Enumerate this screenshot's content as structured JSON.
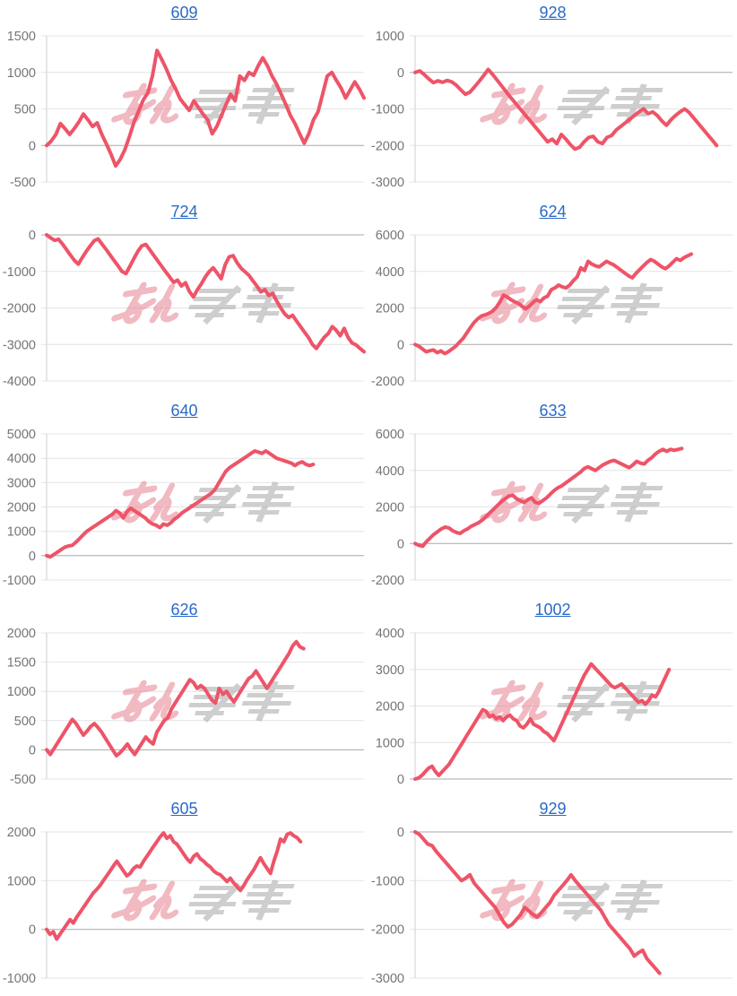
{
  "page": {
    "background": "#ffffff"
  },
  "style": {
    "line_color": "#ee5468",
    "title_color": "#2a6ac8",
    "tick_color": "#757575",
    "grid_color": "#e4e4e4",
    "zero_line_color": "#a8a8a8",
    "axis_color": "#cfcfcf",
    "watermark_pink": "#e6808f",
    "watermark_gray": "#9d9d9d"
  },
  "watermark": {
    "text": "みんレポ",
    "pink_part": "みん",
    "gray_part": "レポ"
  },
  "chart_data": [
    {
      "type": "line",
      "title": "609",
      "legend": "none",
      "grid": "horizontal",
      "ticks": [
        1500,
        1000,
        500,
        0,
        -500
      ],
      "ylim": [
        -500,
        1500
      ],
      "x_span": 1.0,
      "values": [
        0,
        60,
        150,
        300,
        230,
        150,
        230,
        320,
        430,
        350,
        260,
        310,
        150,
        20,
        -120,
        -280,
        -190,
        -60,
        120,
        320,
        470,
        620,
        720,
        950,
        1300,
        1180,
        1050,
        900,
        780,
        640,
        560,
        480,
        610,
        520,
        430,
        350,
        160,
        260,
        410,
        560,
        700,
        610,
        950,
        890,
        1000,
        960,
        1090,
        1200,
        1090,
        950,
        840,
        700,
        560,
        410,
        300,
        160,
        30,
        160,
        350,
        460,
        700,
        950,
        1000,
        890,
        790,
        650,
        760,
        870,
        770,
        650
      ]
    },
    {
      "type": "line",
      "title": "928",
      "legend": "none",
      "grid": "horizontal",
      "ticks": [
        1000,
        0,
        -1000,
        -2000,
        -3000
      ],
      "ylim": [
        -3000,
        1000
      ],
      "x_span": 0.95,
      "values": [
        0,
        40,
        -60,
        -180,
        -280,
        -230,
        -270,
        -220,
        -260,
        -350,
        -480,
        -600,
        -540,
        -400,
        -250,
        -90,
        80,
        -60,
        -220,
        -380,
        -540,
        -700,
        -850,
        -1000,
        -1150,
        -1300,
        -1450,
        -1600,
        -1750,
        -1900,
        -1830,
        -1950,
        -1700,
        -1830,
        -1980,
        -2100,
        -2050,
        -1900,
        -1780,
        -1750,
        -1900,
        -1950,
        -1780,
        -1730,
        -1580,
        -1480,
        -1380,
        -1280,
        -1180,
        -1080,
        -1000,
        -1130,
        -1080,
        -1180,
        -1330,
        -1450,
        -1300,
        -1180,
        -1080,
        -1000,
        -1100,
        -1250,
        -1400,
        -1550,
        -1700,
        -1850,
        -2000
      ]
    },
    {
      "type": "line",
      "title": "724",
      "legend": "none",
      "grid": "horizontal",
      "ticks": [
        0,
        -1000,
        -2000,
        -3000,
        -4000
      ],
      "ylim": [
        -4000,
        0
      ],
      "x_span": 1.0,
      "values": [
        0,
        -80,
        -150,
        -120,
        -250,
        -400,
        -550,
        -700,
        -800,
        -620,
        -450,
        -300,
        -160,
        -110,
        -260,
        -400,
        -550,
        -700,
        -850,
        -1000,
        -1060,
        -860,
        -650,
        -450,
        -300,
        -260,
        -410,
        -560,
        -710,
        -860,
        -1010,
        -1150,
        -1300,
        -1240,
        -1400,
        -1310,
        -1550,
        -1700,
        -1500,
        -1340,
        -1150,
        -1000,
        -900,
        -1050,
        -1200,
        -820,
        -600,
        -570,
        -760,
        -910,
        -1010,
        -1110,
        -1260,
        -1400,
        -1560,
        -1500,
        -1660,
        -1600,
        -1810,
        -2000,
        -2160,
        -2260,
        -2200,
        -2360,
        -2510,
        -2660,
        -2810,
        -3000,
        -3110,
        -2950,
        -2800,
        -2700,
        -2510,
        -2610,
        -2760,
        -2560,
        -2810,
        -2960,
        -3010,
        -3110,
        -3200
      ]
    },
    {
      "type": "line",
      "title": "624",
      "legend": "none",
      "grid": "horizontal",
      "ticks": [
        6000,
        4000,
        2000,
        0,
        -2000
      ],
      "ylim": [
        -2000,
        6000
      ],
      "x_span": 0.87,
      "values": [
        0,
        -100,
        -250,
        -400,
        -340,
        -300,
        -450,
        -350,
        -500,
        -400,
        -250,
        -100,
        120,
        320,
        620,
        920,
        1200,
        1400,
        1560,
        1620,
        1700,
        1820,
        2020,
        2320,
        2700,
        2600,
        2450,
        2340,
        2250,
        2100,
        1950,
        2100,
        2300,
        2450,
        2350,
        2550,
        2650,
        3000,
        3100,
        3250,
        3150,
        3100,
        3250,
        3500,
        3700,
        4200,
        4050,
        4550,
        4400,
        4300,
        4250,
        4400,
        4550,
        4450,
        4350,
        4200,
        4050,
        3900,
        3750,
        3650,
        3900,
        4100,
        4300,
        4500,
        4650,
        4550,
        4400,
        4250,
        4150,
        4300,
        4500,
        4700,
        4600,
        4750,
        4850,
        4950
      ]
    },
    {
      "type": "line",
      "title": "640",
      "legend": "none",
      "grid": "horizontal",
      "ticks": [
        5000,
        4000,
        3000,
        2000,
        1000,
        0,
        -1000
      ],
      "ylim": [
        -1000,
        5000
      ],
      "x_span": 0.84,
      "values": [
        0,
        -50,
        50,
        150,
        250,
        350,
        400,
        420,
        550,
        700,
        850,
        1000,
        1100,
        1200,
        1300,
        1400,
        1500,
        1600,
        1700,
        1850,
        1750,
        1550,
        1800,
        1950,
        1850,
        1750,
        1650,
        1550,
        1400,
        1300,
        1250,
        1150,
        1300,
        1250,
        1350,
        1500,
        1600,
        1750,
        1850,
        1950,
        2050,
        2150,
        2250,
        2350,
        2450,
        2550,
        2700,
        2950,
        3200,
        3450,
        3600,
        3700,
        3800,
        3900,
        4000,
        4100,
        4200,
        4300,
        4250,
        4200,
        4300,
        4200,
        4100,
        4000,
        3950,
        3900,
        3850,
        3800,
        3700,
        3800,
        3850,
        3750,
        3700,
        3750
      ]
    },
    {
      "type": "line",
      "title": "633",
      "legend": "none",
      "grid": "horizontal",
      "ticks": [
        6000,
        4000,
        2000,
        0,
        -2000
      ],
      "ylim": [
        -2000,
        6000
      ],
      "x_span": 0.84,
      "values": [
        0,
        -100,
        -150,
        100,
        300,
        500,
        650,
        800,
        900,
        850,
        700,
        600,
        550,
        700,
        800,
        950,
        1050,
        1150,
        1300,
        1500,
        1700,
        1900,
        2100,
        2300,
        2450,
        2600,
        2650,
        2450,
        2350,
        2250,
        2400,
        2500,
        2250,
        2200,
        2350,
        2500,
        2700,
        2900,
        3050,
        3150,
        3300,
        3450,
        3600,
        3750,
        3900,
        4100,
        4200,
        4100,
        4000,
        4150,
        4300,
        4400,
        4500,
        4550,
        4450,
        4350,
        4250,
        4150,
        4300,
        4500,
        4400,
        4350,
        4550,
        4700,
        4900,
        5050,
        5150,
        5050,
        5150,
        5100,
        5150,
        5200
      ]
    },
    {
      "type": "line",
      "title": "626",
      "legend": "none",
      "grid": "horizontal",
      "ticks": [
        2000,
        1500,
        1000,
        500,
        0,
        -500
      ],
      "ylim": [
        -500,
        2000
      ],
      "x_span": 0.81,
      "values": [
        0,
        -80,
        20,
        120,
        220,
        320,
        420,
        520,
        450,
        350,
        250,
        320,
        400,
        450,
        380,
        300,
        200,
        100,
        0,
        -100,
        -50,
        20,
        100,
        0,
        -80,
        20,
        120,
        220,
        150,
        100,
        300,
        400,
        500,
        550,
        700,
        800,
        900,
        1000,
        1100,
        1200,
        1150,
        1050,
        1100,
        1050,
        950,
        850,
        800,
        1050,
        950,
        1000,
        900,
        820,
        920,
        1020,
        1120,
        1220,
        1260,
        1350,
        1250,
        1150,
        1050,
        1150,
        1250,
        1350,
        1450,
        1550,
        1650,
        1780,
        1850,
        1760,
        1730
      ]
    },
    {
      "type": "line",
      "title": "1002",
      "legend": "none",
      "grid": "horizontal",
      "ticks": [
        4000,
        3000,
        2000,
        1000,
        0
      ],
      "ylim": [
        0,
        4000
      ],
      "x_span": 0.8,
      "values": [
        0,
        30,
        100,
        200,
        300,
        350,
        200,
        100,
        200,
        300,
        400,
        550,
        700,
        850,
        1000,
        1150,
        1300,
        1450,
        1600,
        1750,
        1900,
        1850,
        1700,
        1750,
        1650,
        1700,
        1600,
        1700,
        1750,
        1650,
        1600,
        1450,
        1400,
        1500,
        1650,
        1500,
        1450,
        1400,
        1300,
        1250,
        1150,
        1050,
        1250,
        1450,
        1650,
        1850,
        2050,
        2250,
        2450,
        2650,
        2850,
        3000,
        3150,
        3050,
        2950,
        2850,
        2750,
        2650,
        2550,
        2500,
        2550,
        2600,
        2500,
        2400,
        2300,
        2200,
        2100,
        2150,
        2050,
        2150,
        2300,
        2250,
        2400,
        2600,
        2800,
        3000
      ]
    },
    {
      "type": "line",
      "title": "605",
      "legend": "none",
      "grid": "horizontal",
      "ticks": [
        2000,
        1000,
        0,
        -1000
      ],
      "ylim": [
        -1000,
        2000
      ],
      "x_span": 0.8,
      "values": [
        0,
        -100,
        -50,
        -200,
        -100,
        0,
        100,
        200,
        130,
        250,
        350,
        450,
        550,
        650,
        750,
        820,
        900,
        1000,
        1100,
        1200,
        1300,
        1400,
        1300,
        1200,
        1100,
        1150,
        1250,
        1300,
        1280,
        1400,
        1500,
        1600,
        1700,
        1800,
        1900,
        1980,
        1870,
        1920,
        1800,
        1750,
        1650,
        1550,
        1450,
        1380,
        1500,
        1550,
        1450,
        1400,
        1330,
        1280,
        1200,
        1150,
        1120,
        1050,
        980,
        1050,
        950,
        880,
        800,
        900,
        1020,
        1120,
        1220,
        1350,
        1470,
        1350,
        1250,
        1150,
        1400,
        1600,
        1850,
        1800,
        1950,
        1980,
        1920,
        1880,
        1800
      ]
    },
    {
      "type": "line",
      "title": "929",
      "legend": "none",
      "grid": "horizontal",
      "ticks": [
        0,
        -1000,
        -2000,
        -3000
      ],
      "ylim": [
        -3000,
        0
      ],
      "x_span": 0.77,
      "values": [
        0,
        -50,
        -150,
        -250,
        -280,
        -400,
        -500,
        -600,
        -700,
        -800,
        -900,
        -1000,
        -950,
        -880,
        -1050,
        -1150,
        -1250,
        -1350,
        -1450,
        -1550,
        -1700,
        -1850,
        -1950,
        -1900,
        -1800,
        -1700,
        -1550,
        -1620,
        -1700,
        -1750,
        -1650,
        -1550,
        -1450,
        -1300,
        -1200,
        -1100,
        -1000,
        -880,
        -1000,
        -1100,
        -1200,
        -1300,
        -1400,
        -1500,
        -1600,
        -1750,
        -1900,
        -2000,
        -2100,
        -2200,
        -2300,
        -2400,
        -2550,
        -2480,
        -2430,
        -2600,
        -2700,
        -2800,
        -2900
      ]
    }
  ]
}
